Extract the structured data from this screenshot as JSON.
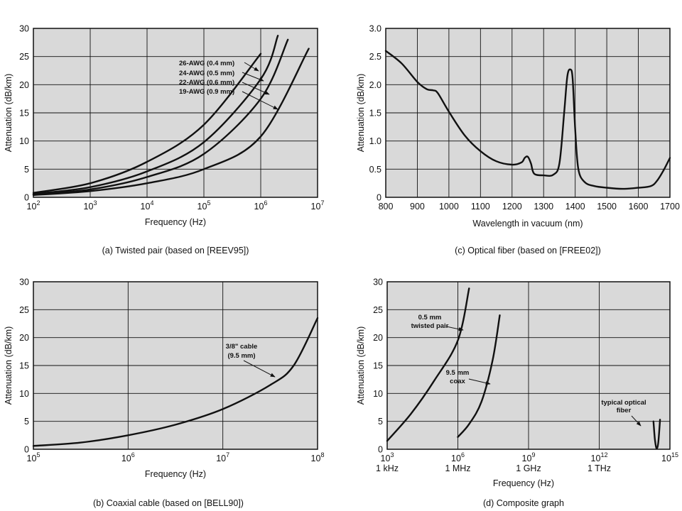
{
  "chart_data": [
    {
      "type": "line",
      "panel": "a",
      "caption": "(a) Twisted pair (based on [REEV95])",
      "xlabel": "Frequency (Hz)",
      "ylabel": "Attenuation (dB/km)",
      "xscale": "log",
      "xlim_exp": [
        2,
        7
      ],
      "ylim": [
        0,
        30
      ],
      "grid": true,
      "xticks": [
        {
          "base": "10",
          "exp": "2"
        },
        {
          "base": "10",
          "exp": "3"
        },
        {
          "base": "10",
          "exp": "4"
        },
        {
          "base": "10",
          "exp": "5"
        },
        {
          "base": "10",
          "exp": "6"
        },
        {
          "base": "10",
          "exp": "7"
        }
      ],
      "yticks": [
        "0",
        "5",
        "10",
        "15",
        "20",
        "25",
        "30"
      ],
      "series": [
        {
          "name": "26-AWG (0.4 mm)",
          "x": [
            100,
            1000,
            10000,
            100000,
            1000000
          ],
          "y": [
            0.8,
            2.5,
            6.3,
            12.9,
            25.5
          ]
        },
        {
          "name": "24-AWG (0.5 mm)",
          "x": [
            100,
            1000,
            10000,
            100000,
            1000000,
            2000000
          ],
          "y": [
            0.6,
            1.8,
            4.6,
            9.8,
            21,
            28.7
          ]
        },
        {
          "name": "22-AWG (0.6 mm)",
          "x": [
            100,
            1000,
            10000,
            100000,
            1000000,
            3000000
          ],
          "y": [
            0.5,
            1.4,
            3.6,
            7.7,
            17.5,
            28
          ]
        },
        {
          "name": "19-AWG (0.9 mm)",
          "x": [
            100,
            1000,
            10000,
            100000,
            1000000,
            7000000
          ],
          "y": [
            0.4,
            1.1,
            2.5,
            5,
            10.8,
            26.4
          ]
        }
      ],
      "annotations": [
        "26-AWG (0.4 mm)",
        "24-AWG (0.5 mm)",
        "22-AWG (0.6 mm)",
        "19-AWG (0.9 mm)"
      ]
    },
    {
      "type": "line",
      "panel": "c",
      "caption": "(c) Optical fiber (based on [FREE02])",
      "xlabel": "Wavelength in vacuum (nm)",
      "ylabel": "Attenuation (dB/km)",
      "xlim": [
        800,
        1700
      ],
      "ylim": [
        0,
        3.0
      ],
      "grid": true,
      "xticks": [
        "800",
        "900",
        "1000",
        "1100",
        "1200",
        "1300",
        "1400",
        "1500",
        "1600",
        "1700"
      ],
      "yticks": [
        "0",
        "0.5",
        "1.0",
        "1.5",
        "2.0",
        "2.5",
        "3.0"
      ],
      "series": [
        {
          "x": [
            800,
            850,
            900,
            930,
            950,
            965,
            1000,
            1050,
            1100,
            1150,
            1200,
            1230,
            1240,
            1250,
            1260,
            1270,
            1300,
            1330,
            1350,
            1365,
            1375,
            1385,
            1392,
            1400,
            1410,
            1430,
            1460,
            1500,
            1550,
            1600,
            1640,
            1660,
            1680,
            1700
          ],
          "y": [
            2.6,
            2.38,
            2.05,
            1.92,
            1.9,
            1.85,
            1.52,
            1.1,
            0.82,
            0.64,
            0.58,
            0.62,
            0.7,
            0.72,
            0.6,
            0.42,
            0.39,
            0.4,
            0.6,
            1.5,
            2.15,
            2.27,
            2.1,
            1.2,
            0.5,
            0.27,
            0.2,
            0.17,
            0.15,
            0.17,
            0.2,
            0.3,
            0.48,
            0.7
          ]
        }
      ]
    },
    {
      "type": "line",
      "panel": "b",
      "caption": "(b) Coaxial cable (based on [BELL90])",
      "xlabel": "Frequency (Hz)",
      "ylabel": "Attenuation (dB/km)",
      "xscale": "log",
      "xlim_exp": [
        5,
        8
      ],
      "ylim": [
        0,
        30
      ],
      "grid": true,
      "xticks": [
        {
          "base": "10",
          "exp": "5"
        },
        {
          "base": "10",
          "exp": "6"
        },
        {
          "base": "10",
          "exp": "7"
        },
        {
          "base": "10",
          "exp": "8"
        }
      ],
      "yticks": [
        "0",
        "5",
        "10",
        "15",
        "20",
        "25",
        "30"
      ],
      "series": [
        {
          "name": "3/8\" cable (9.5 mm)",
          "x": [
            100000,
            316000,
            1000000,
            3160000,
            10000000,
            31600000,
            56000000,
            100000000
          ],
          "y": [
            0.6,
            1.2,
            2.5,
            4.4,
            7.2,
            11.5,
            15,
            23.5
          ]
        }
      ],
      "annotations": [
        "3/8\" cable",
        "(9.5 mm)"
      ]
    },
    {
      "type": "line",
      "panel": "d",
      "caption": "(d) Composite graph",
      "xlabel": "Frequency (Hz)",
      "ylabel": "Attenuation (dB/km)",
      "xscale": "log",
      "xlim_exp": [
        3,
        15
      ],
      "ylim": [
        0,
        30
      ],
      "grid": true,
      "xticks": [
        {
          "base": "10",
          "exp": "3",
          "sub": "1 kHz"
        },
        {
          "base": "10",
          "exp": "6",
          "sub": "1 MHz"
        },
        {
          "base": "10",
          "exp": "9",
          "sub": "1 GHz"
        },
        {
          "base": "10",
          "exp": "12",
          "sub": "1 THz"
        },
        {
          "base": "10",
          "exp": "15",
          "sub": ""
        }
      ],
      "yticks": [
        "0",
        "5",
        "10",
        "15",
        "20",
        "25",
        "30"
      ],
      "series": [
        {
          "name": "0.5 mm twisted pair",
          "x": [
            1000,
            10000,
            100000,
            1000000,
            3000000
          ],
          "y": [
            1.5,
            6.3,
            12.3,
            19.5,
            28.8
          ]
        },
        {
          "name": "9.5 mm coax",
          "x": [
            1000000,
            3000000,
            10000000,
            30000000,
            60000000
          ],
          "y": [
            2.2,
            4.5,
            8.5,
            16,
            24
          ]
        },
        {
          "name": "typical optical fiber",
          "x": [
            200000000000000,
            230000000000000,
            270000000000000,
            320000000000000,
            380000000000000
          ],
          "y": [
            5,
            1.8,
            0.15,
            1.2,
            5.3
          ]
        }
      ],
      "annotations": [
        "0.5 mm",
        "twisted pair",
        "9.5 mm",
        "coax",
        "typical optical",
        "fiber"
      ]
    }
  ]
}
